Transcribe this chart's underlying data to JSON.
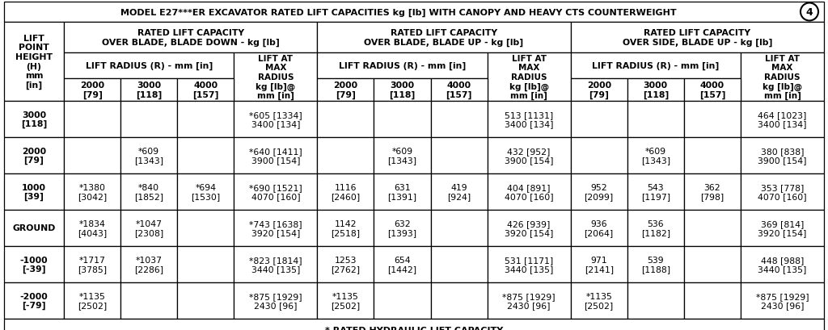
{
  "title": "MODEL E27***ER EXCAVATOR RATED LIFT CAPACITIES kg [lb] WITH CANOPY AND HEAVY CTS COUNTERWEIGHT",
  "title_num": "4",
  "footer": "* RATED HYDRAULIC LIFT CAPACITY",
  "col_group_headers": [
    "RATED LIFT CAPACITY\nOVER BLADE, BLADE DOWN - kg [lb]",
    "RATED LIFT CAPACITY\nOVER BLADE, BLADE UP - kg [lb]",
    "RATED LIFT CAPACITY\nOVER SIDE, BLADE UP - kg [lb]"
  ],
  "radius_cols": [
    "2000\n[79]",
    "3000\n[118]",
    "4000\n[157]"
  ],
  "lift_at_max": "LIFT AT\nMAX\nRADIUS\nkg [lb]@\nmm [in]",
  "row_header": "LIFT\nPOINT\nHEIGHT\n(H)\nmm\n[in]",
  "heights": [
    "3000\n[118]",
    "2000\n[79]",
    "1000\n[39]",
    "GROUND",
    "-1000\n[-39]",
    "-2000\n[-79]"
  ],
  "data": {
    "blade_down": {
      "r2000": [
        "",
        "",
        "*1380\n[3042]",
        "*1834\n[4043]",
        "*1717\n[3785]",
        "*1135\n[2502]"
      ],
      "r3000": [
        "",
        "*609\n[1343]",
        "*840\n[1852]",
        "*1047\n[2308]",
        "*1037\n[2286]",
        ""
      ],
      "r4000": [
        "",
        "",
        "*694\n[1530]",
        "",
        "",
        ""
      ],
      "max": [
        "*605 [1334]\n3400 [134]",
        "*640 [1411]\n3900 [154]",
        "*690 [1521]\n4070 [160]",
        "*743 [1638]\n3920 [154]",
        "*823 [1814]\n3440 [135]",
        "*875 [1929]\n2430 [96]"
      ]
    },
    "blade_up": {
      "r2000": [
        "",
        "",
        "1116\n[2460]",
        "1142\n[2518]",
        "1253\n[2762]",
        "*1135\n[2502]"
      ],
      "r3000": [
        "",
        "*609\n[1343]",
        "631\n[1391]",
        "632\n[1393]",
        "654\n[1442]",
        ""
      ],
      "r4000": [
        "",
        "",
        "419\n[924]",
        "",
        "",
        ""
      ],
      "max": [
        "513 [1131]\n3400 [134]",
        "432 [952]\n3900 [154]",
        "404 [891]\n4070 [160]",
        "426 [939]\n3920 [154]",
        "531 [1171]\n3440 [135]",
        "*875 [1929]\n2430 [96]"
      ]
    },
    "over_side": {
      "r2000": [
        "",
        "",
        "952\n[2099]",
        "936\n[2064]",
        "971\n[2141]",
        "*1135\n[2502]"
      ],
      "r3000": [
        "",
        "*609\n[1343]",
        "543\n[1197]",
        "536\n[1182]",
        "539\n[1188]",
        ""
      ],
      "r4000": [
        "",
        "",
        "362\n[798]",
        "",
        "",
        ""
      ],
      "max": [
        "464 [1023]\n3400 [134]",
        "380 [838]\n3900 [154]",
        "353 [778]\n4070 [160]",
        "369 [814]\n3920 [154]",
        "448 [988]\n3440 [135]",
        "*875 [1929]\n2430 [96]"
      ]
    }
  },
  "bg_color": "#ffffff",
  "line_color": "#000000",
  "title_fontsize": 8.0,
  "header_fontsize": 7.8,
  "data_fontsize": 7.8,
  "footer_fontsize": 8.0
}
